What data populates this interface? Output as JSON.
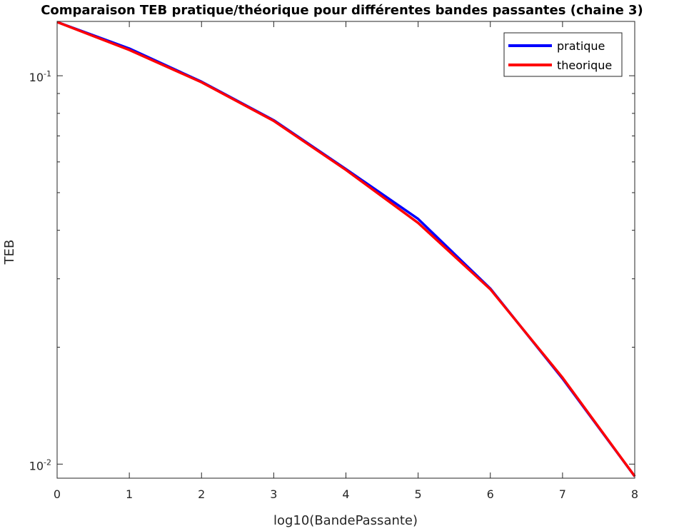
{
  "chart_data": {
    "type": "line",
    "title": "Comparaison TEB pratique/théorique pour différentes bandes passantes (chaine 3)",
    "xlabel": "log10(BandePassante)",
    "ylabel": "TEB",
    "xlim": [
      0,
      8
    ],
    "ylim": [
      0.0092,
      0.138
    ],
    "yscale": "log",
    "grid": false,
    "legend_position": "top-right",
    "x_ticks": [
      {
        "value": 0,
        "label": "0"
      },
      {
        "value": 1,
        "label": "1"
      },
      {
        "value": 2,
        "label": "2"
      },
      {
        "value": 3,
        "label": "3"
      },
      {
        "value": 4,
        "label": "4"
      },
      {
        "value": 5,
        "label": "5"
      },
      {
        "value": 6,
        "label": "6"
      },
      {
        "value": 7,
        "label": "7"
      },
      {
        "value": 8,
        "label": "8"
      }
    ],
    "y_ticks": [
      {
        "value": 0.01,
        "base": "10",
        "exp": "-2"
      },
      {
        "value": 0.1,
        "base": "10",
        "exp": "-1"
      }
    ],
    "x": [
      0,
      1,
      2,
      3,
      4,
      5,
      6,
      7,
      8
    ],
    "series": [
      {
        "name": "pratique",
        "color": "#0000ff",
        "values": [
          0.1375,
          0.1175,
          0.0965,
          0.0768,
          0.0575,
          0.0428,
          0.0283,
          0.0166,
          0.0093
        ]
      },
      {
        "name": "theorique",
        "color": "#ff0000",
        "values": [
          0.1375,
          0.1165,
          0.0962,
          0.0765,
          0.0572,
          0.0418,
          0.0282,
          0.0167,
          0.0093
        ]
      }
    ]
  }
}
